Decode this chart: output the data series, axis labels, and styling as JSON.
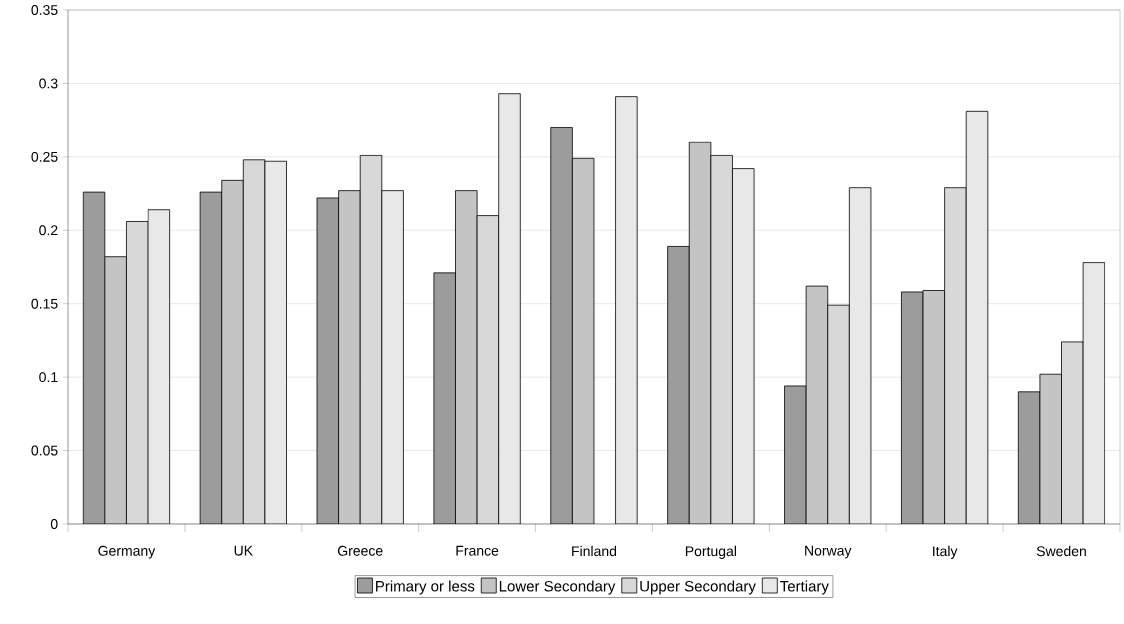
{
  "chart_data": {
    "type": "bar",
    "categories": [
      "Germany",
      "UK",
      "Greece",
      "France",
      "Finland",
      "Portugal",
      "Norway",
      "Italy",
      "Sweden"
    ],
    "series": [
      {
        "name": "Primary or less",
        "color": "#9c9c9c",
        "values": [
          0.226,
          0.226,
          0.222,
          0.171,
          0.27,
          0.189,
          0.094,
          0.158,
          0.09
        ]
      },
      {
        "name": "Lower Secondary",
        "color": "#c4c4c4",
        "values": [
          0.182,
          0.234,
          0.227,
          0.227,
          0.249,
          0.26,
          0.162,
          0.159,
          0.102
        ]
      },
      {
        "name": "Upper Secondary",
        "color": "#d8d8d8",
        "values": [
          0.206,
          0.248,
          0.251,
          0.21,
          null,
          0.251,
          0.149,
          0.229,
          0.124
        ]
      },
      {
        "name": "Tertiary",
        "color": "#e8e8e8",
        "values": [
          0.214,
          0.247,
          0.227,
          0.293,
          0.291,
          0.242,
          0.229,
          0.281,
          0.178
        ]
      }
    ],
    "ylim": [
      0,
      0.35
    ],
    "yticks": [
      0,
      0.05,
      0.1,
      0.15,
      0.2,
      0.25,
      0.3,
      0.35
    ],
    "grid": "y",
    "legend": "bottom"
  }
}
